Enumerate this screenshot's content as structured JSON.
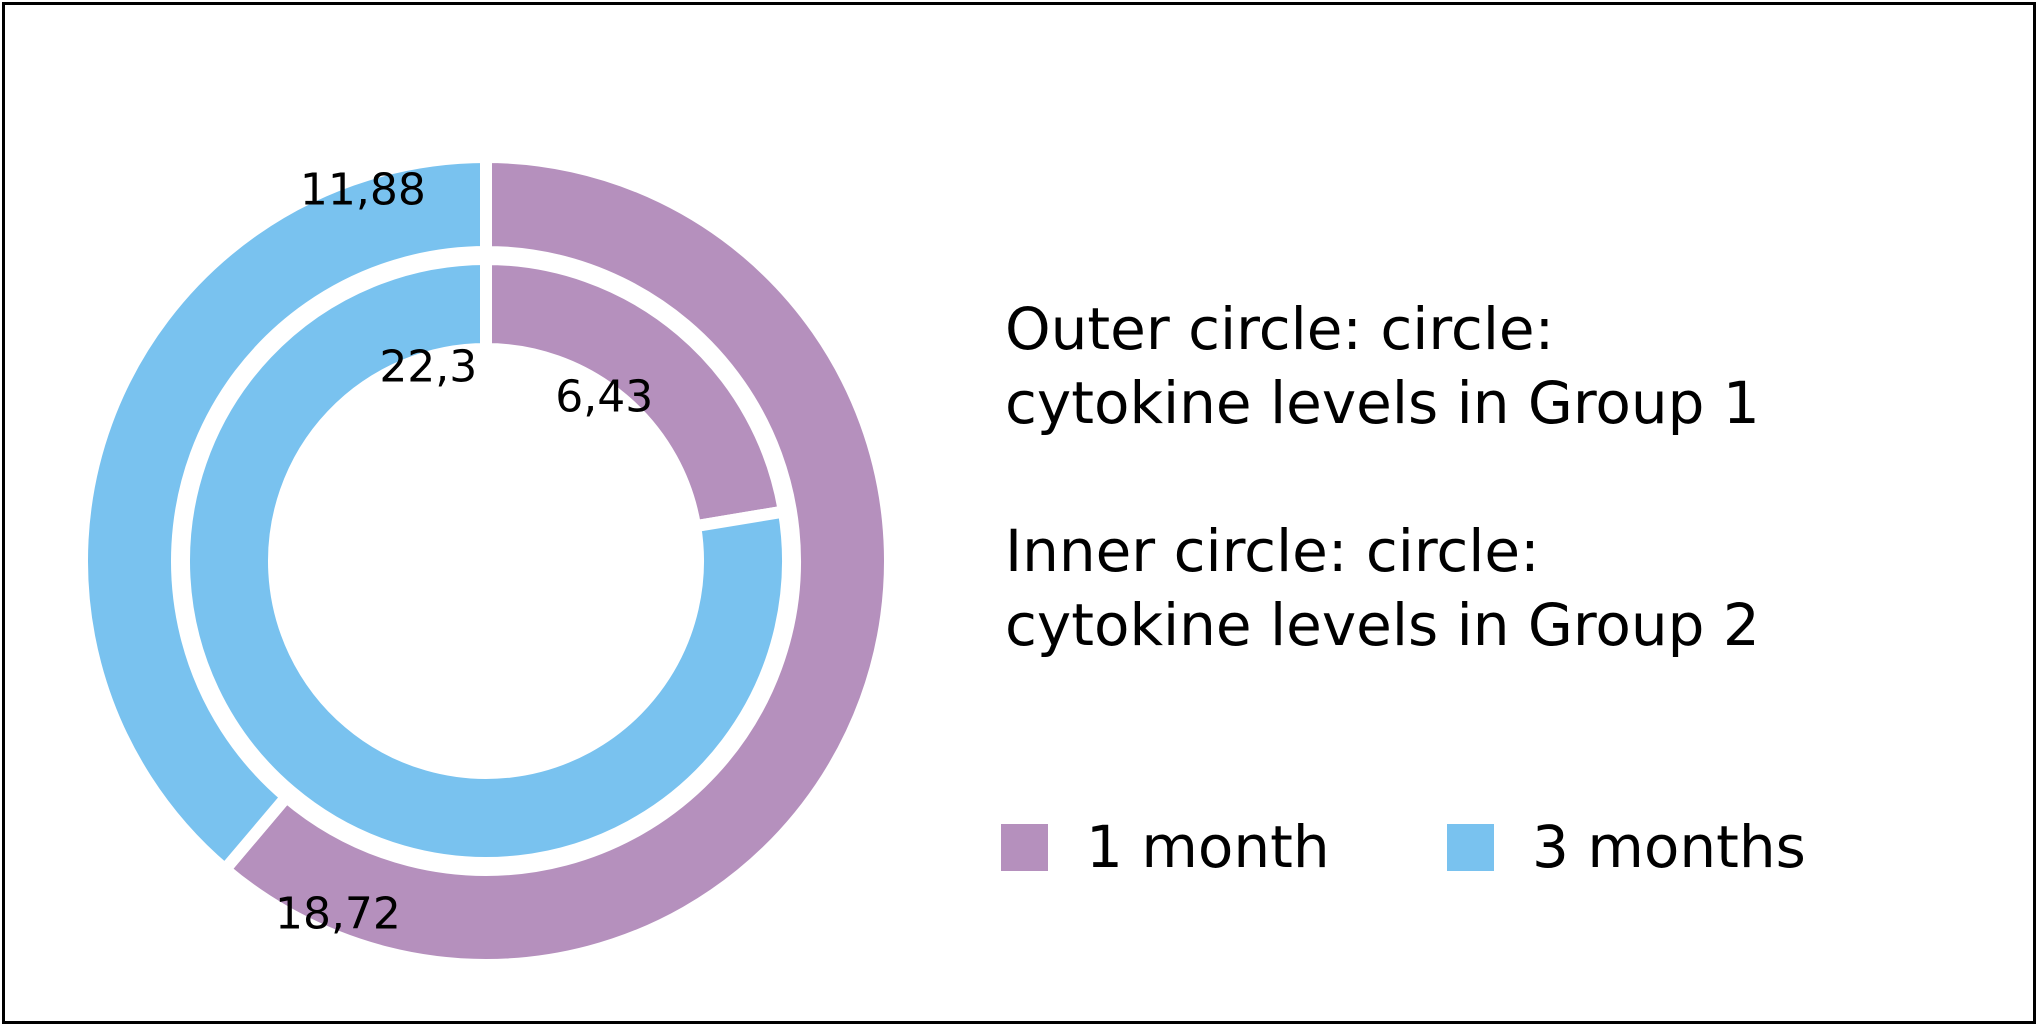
{
  "chart_data": {
    "type": "pie",
    "subtype": "nested-donut",
    "categories": [
      "1 month",
      "3 months"
    ],
    "colors": {
      "1 month": "#b590bd",
      "3 months": "#79c2ef"
    },
    "rings": [
      {
        "name": "Outer circle",
        "values": [
          18.72,
          11.88
        ],
        "labels": [
          "18,72",
          "11,88"
        ]
      },
      {
        "name": "Inner circle",
        "values": [
          6.43,
          22.3
        ],
        "labels": [
          "6,43",
          "22,3"
        ]
      }
    ],
    "legend": {
      "position": "bottom-right",
      "items": [
        "1 month",
        "3 months"
      ]
    },
    "annotations": {
      "outer_line1": "Outer circle: circle:",
      "outer_line2": "cytokine levels in Group 1",
      "inner_line1": "Inner circle: circle:",
      "inner_line2": "cytokine levels in Group 2"
    }
  }
}
